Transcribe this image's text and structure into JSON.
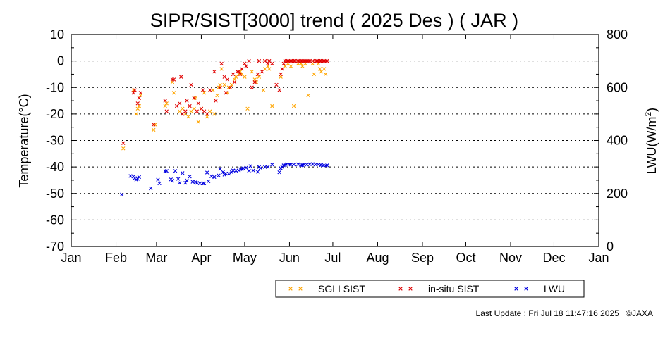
{
  "chart_data": {
    "type": "scatter",
    "title": "SIPR/SIST[3000] trend ( 2025 Des ) ( JAR )",
    "xlabel": "",
    "ylabel": "Temperature(°C)",
    "y2label": "LWU(W/m²)",
    "x_unit": "day of year 2025",
    "xlim": [
      1,
      366
    ],
    "ylim": [
      -70,
      10
    ],
    "y2lim": [
      0,
      800
    ],
    "y_ticks": [
      "10",
      "0",
      "-10",
      "-20",
      "-30",
      "-40",
      "-50",
      "-60",
      "-70"
    ],
    "y2_ticks": [
      "800",
      "600",
      "400",
      "200",
      "0"
    ],
    "x_ticks": [
      "Jan",
      "Feb",
      "Mar",
      "Apr",
      "May",
      "Jun",
      "Jul",
      "Aug",
      "Sep",
      "Oct",
      "Nov",
      "Dec",
      "Jan"
    ],
    "grid": "horizontal dotted",
    "legend_position": "bottom-right",
    "series": [
      {
        "name": "SGLI SIST",
        "axis": "left",
        "color": "#ffa500",
        "marker": "x",
        "points": [
          [
            37,
            -33
          ],
          [
            44,
            -11
          ],
          [
            46,
            -20
          ],
          [
            47,
            -18
          ],
          [
            48,
            -17
          ],
          [
            49,
            -13
          ],
          [
            58,
            -26
          ],
          [
            59,
            -24
          ],
          [
            66,
            -17
          ],
          [
            67,
            -16
          ],
          [
            71,
            -8
          ],
          [
            72,
            -12
          ],
          [
            76,
            -19
          ],
          [
            78,
            -18
          ],
          [
            80,
            -20
          ],
          [
            82,
            -21
          ],
          [
            84,
            -19
          ],
          [
            86,
            -18
          ],
          [
            87,
            -14
          ],
          [
            89,
            -23
          ],
          [
            91,
            -18
          ],
          [
            93,
            -12
          ],
          [
            95,
            -21
          ],
          [
            97,
            -19
          ],
          [
            99,
            -11
          ],
          [
            100,
            -20
          ],
          [
            102,
            -13
          ],
          [
            103,
            -10
          ],
          [
            104,
            -9
          ],
          [
            105,
            -3
          ],
          [
            107,
            -9
          ],
          [
            109,
            -12
          ],
          [
            110,
            -10
          ],
          [
            112,
            -9
          ],
          [
            114,
            -7
          ],
          [
            115,
            -6
          ],
          [
            117,
            -5
          ],
          [
            118,
            -4
          ],
          [
            119,
            -5
          ],
          [
            121,
            -6
          ],
          [
            123,
            -18
          ],
          [
            126,
            -4
          ],
          [
            128,
            -7
          ],
          [
            129,
            -8
          ],
          [
            131,
            -6
          ],
          [
            134,
            -11
          ],
          [
            135,
            -3
          ],
          [
            137,
            -2
          ],
          [
            138,
            -3
          ],
          [
            140,
            -17
          ],
          [
            146,
            -6
          ],
          [
            149,
            -2
          ],
          [
            151,
            -1
          ],
          [
            153,
            -2
          ],
          [
            155,
            -17
          ],
          [
            158,
            -1
          ],
          [
            160,
            -1
          ],
          [
            161,
            -2
          ],
          [
            163,
            -1
          ],
          [
            165,
            -13
          ],
          [
            168,
            -1
          ],
          [
            169,
            -5
          ],
          [
            172,
            -1
          ],
          [
            173,
            -3
          ],
          [
            174,
            -4
          ],
          [
            176,
            -3
          ],
          [
            177,
            -5
          ]
        ]
      },
      {
        "name": "in-situ SIST",
        "axis": "left",
        "color": "#e00000",
        "marker": "x",
        "points": [
          [
            37,
            -31
          ],
          [
            44,
            -12
          ],
          [
            45,
            -11
          ],
          [
            47,
            -16
          ],
          [
            48,
            -14
          ],
          [
            49,
            -12
          ],
          [
            58,
            -24
          ],
          [
            66,
            -15
          ],
          [
            67,
            -19
          ],
          [
            71,
            -7
          ],
          [
            72,
            -7
          ],
          [
            74,
            -17
          ],
          [
            76,
            -16
          ],
          [
            77,
            -6
          ],
          [
            78,
            -20
          ],
          [
            80,
            -19
          ],
          [
            81,
            -15
          ],
          [
            83,
            -17
          ],
          [
            84,
            -9
          ],
          [
            86,
            -14
          ],
          [
            88,
            -19
          ],
          [
            89,
            -16
          ],
          [
            91,
            -18
          ],
          [
            92,
            -11
          ],
          [
            93,
            -19
          ],
          [
            95,
            -20
          ],
          [
            97,
            -11
          ],
          [
            100,
            -4
          ],
          [
            101,
            -15
          ],
          [
            104,
            -10
          ],
          [
            105,
            -1
          ],
          [
            107,
            -6
          ],
          [
            108,
            -12
          ],
          [
            109,
            -7
          ],
          [
            111,
            -10
          ],
          [
            113,
            -5
          ],
          [
            114,
            -8
          ],
          [
            116,
            -4
          ],
          [
            117,
            -4
          ],
          [
            118,
            -5
          ],
          [
            119,
            -3
          ],
          [
            121,
            -1
          ],
          [
            122,
            -2
          ],
          [
            124,
            0
          ],
          [
            126,
            -10
          ],
          [
            128,
            -8
          ],
          [
            130,
            -5
          ],
          [
            131,
            0
          ],
          [
            133,
            -4
          ],
          [
            135,
            0
          ],
          [
            137,
            -1
          ],
          [
            138,
            0
          ],
          [
            140,
            -1
          ],
          [
            143,
            -9
          ],
          [
            145,
            -11
          ],
          [
            146,
            -5
          ],
          [
            147,
            -3
          ],
          [
            148,
            -1
          ],
          [
            149,
            0
          ],
          [
            150,
            0
          ],
          [
            151,
            0
          ],
          [
            152,
            0
          ],
          [
            153,
            0
          ],
          [
            154,
            0
          ],
          [
            155,
            0
          ],
          [
            156,
            0
          ],
          [
            158,
            0
          ],
          [
            159,
            0
          ],
          [
            160,
            0
          ],
          [
            161,
            0
          ],
          [
            162,
            0
          ],
          [
            163,
            0
          ],
          [
            164,
            0
          ],
          [
            165,
            0
          ],
          [
            166,
            0
          ],
          [
            168,
            0
          ],
          [
            170,
            0
          ],
          [
            171,
            0
          ],
          [
            172,
            0
          ],
          [
            173,
            0
          ],
          [
            174,
            0
          ],
          [
            175,
            0
          ],
          [
            176,
            0
          ],
          [
            177,
            0
          ],
          [
            178,
            0
          ]
        ]
      },
      {
        "name": "LWU",
        "axis": "right",
        "color": "#0000e0",
        "marker": "x",
        "points": [
          [
            36,
            196
          ],
          [
            42,
            266
          ],
          [
            44,
            264
          ],
          [
            45,
            258
          ],
          [
            46,
            252
          ],
          [
            47,
            255
          ],
          [
            48,
            262
          ],
          [
            56,
            219
          ],
          [
            61,
            252
          ],
          [
            62,
            238
          ],
          [
            66,
            284
          ],
          [
            67,
            285
          ],
          [
            70,
            253
          ],
          [
            71,
            248
          ],
          [
            73,
            285
          ],
          [
            75,
            255
          ],
          [
            76,
            240
          ],
          [
            78,
            277
          ],
          [
            80,
            240
          ],
          [
            81,
            249
          ],
          [
            83,
            264
          ],
          [
            85,
            244
          ],
          [
            87,
            243
          ],
          [
            88,
            240
          ],
          [
            90,
            238
          ],
          [
            92,
            238
          ],
          [
            93,
            238
          ],
          [
            95,
            279
          ],
          [
            96,
            246
          ],
          [
            98,
            265
          ],
          [
            100,
            262
          ],
          [
            103,
            268
          ],
          [
            104,
            293
          ],
          [
            106,
            281
          ],
          [
            107,
            271
          ],
          [
            108,
            275
          ],
          [
            110,
            275
          ],
          [
            112,
            280
          ],
          [
            113,
            287
          ],
          [
            115,
            286
          ],
          [
            117,
            287
          ],
          [
            118,
            292
          ],
          [
            119,
            292
          ],
          [
            120,
            295
          ],
          [
            122,
            297
          ],
          [
            124,
            286
          ],
          [
            125,
            303
          ],
          [
            127,
            287
          ],
          [
            130,
            282
          ],
          [
            131,
            300
          ],
          [
            132,
            296
          ],
          [
            135,
            300
          ],
          [
            137,
            300
          ],
          [
            140,
            309
          ],
          [
            145,
            280
          ],
          [
            146,
            295
          ],
          [
            147,
            300
          ],
          [
            148,
            306
          ],
          [
            149,
            308
          ],
          [
            150,
            310
          ],
          [
            152,
            310
          ],
          [
            153,
            309
          ],
          [
            155,
            309
          ],
          [
            158,
            310
          ],
          [
            160,
            306
          ],
          [
            161,
            307
          ],
          [
            162,
            309
          ],
          [
            164,
            309
          ],
          [
            166,
            310
          ],
          [
            168,
            311
          ],
          [
            170,
            309
          ],
          [
            172,
            309
          ],
          [
            174,
            307
          ],
          [
            175,
            306
          ],
          [
            177,
            305
          ],
          [
            178,
            306
          ]
        ]
      }
    ]
  },
  "footer": {
    "last_update": "Last Update : Fri Jul 18 11:47:16 2025",
    "copyright": "©JAXA"
  }
}
